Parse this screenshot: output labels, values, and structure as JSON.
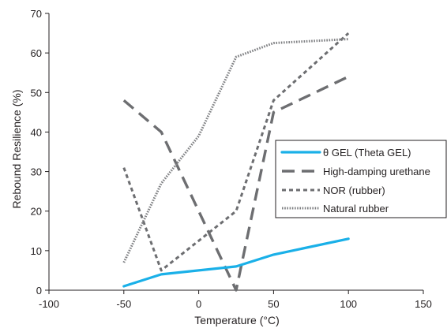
{
  "chart_data": {
    "type": "line",
    "title": "",
    "xlabel": "Temperature (°C)",
    "ylabel": "Rebound Resilience (%)",
    "xlim": [
      -100,
      150
    ],
    "ylim": [
      0,
      70
    ],
    "xticks": [
      -100,
      -50,
      0,
      50,
      100,
      150
    ],
    "yticks": [
      0,
      10,
      20,
      30,
      40,
      50,
      60,
      70
    ],
    "x_tick_labels": [
      "-100",
      "-50",
      "0",
      "50",
      "100",
      "150"
    ],
    "y_tick_labels": [
      "0",
      "10",
      "20",
      "30",
      "40",
      "50",
      "60",
      "70"
    ],
    "grid": false,
    "legend_position": "right",
    "series": [
      {
        "name": "θ GEL (Theta GEL)",
        "color": "#1ab0e8",
        "style": "solid",
        "x": [
          -50,
          -25,
          25,
          50,
          100
        ],
        "y": [
          1,
          4,
          6,
          9,
          13
        ]
      },
      {
        "name": "High-damping urethane",
        "color": "#6d6e71",
        "style": "long-dash",
        "x": [
          -50,
          -25,
          25,
          50,
          100
        ],
        "y": [
          48,
          40,
          0,
          45,
          54
        ]
      },
      {
        "name": "NOR (rubber)",
        "color": "#6d6e71",
        "style": "short-dash",
        "x": [
          -50,
          -25,
          25,
          50,
          100
        ],
        "y": [
          31,
          5,
          20,
          48,
          65
        ]
      },
      {
        "name": "Natural rubber",
        "color": "#7f8083",
        "style": "dotted",
        "x": [
          -50,
          -25,
          0,
          25,
          50,
          100
        ],
        "y": [
          7,
          27,
          39,
          59,
          62.5,
          63.5
        ]
      }
    ]
  }
}
